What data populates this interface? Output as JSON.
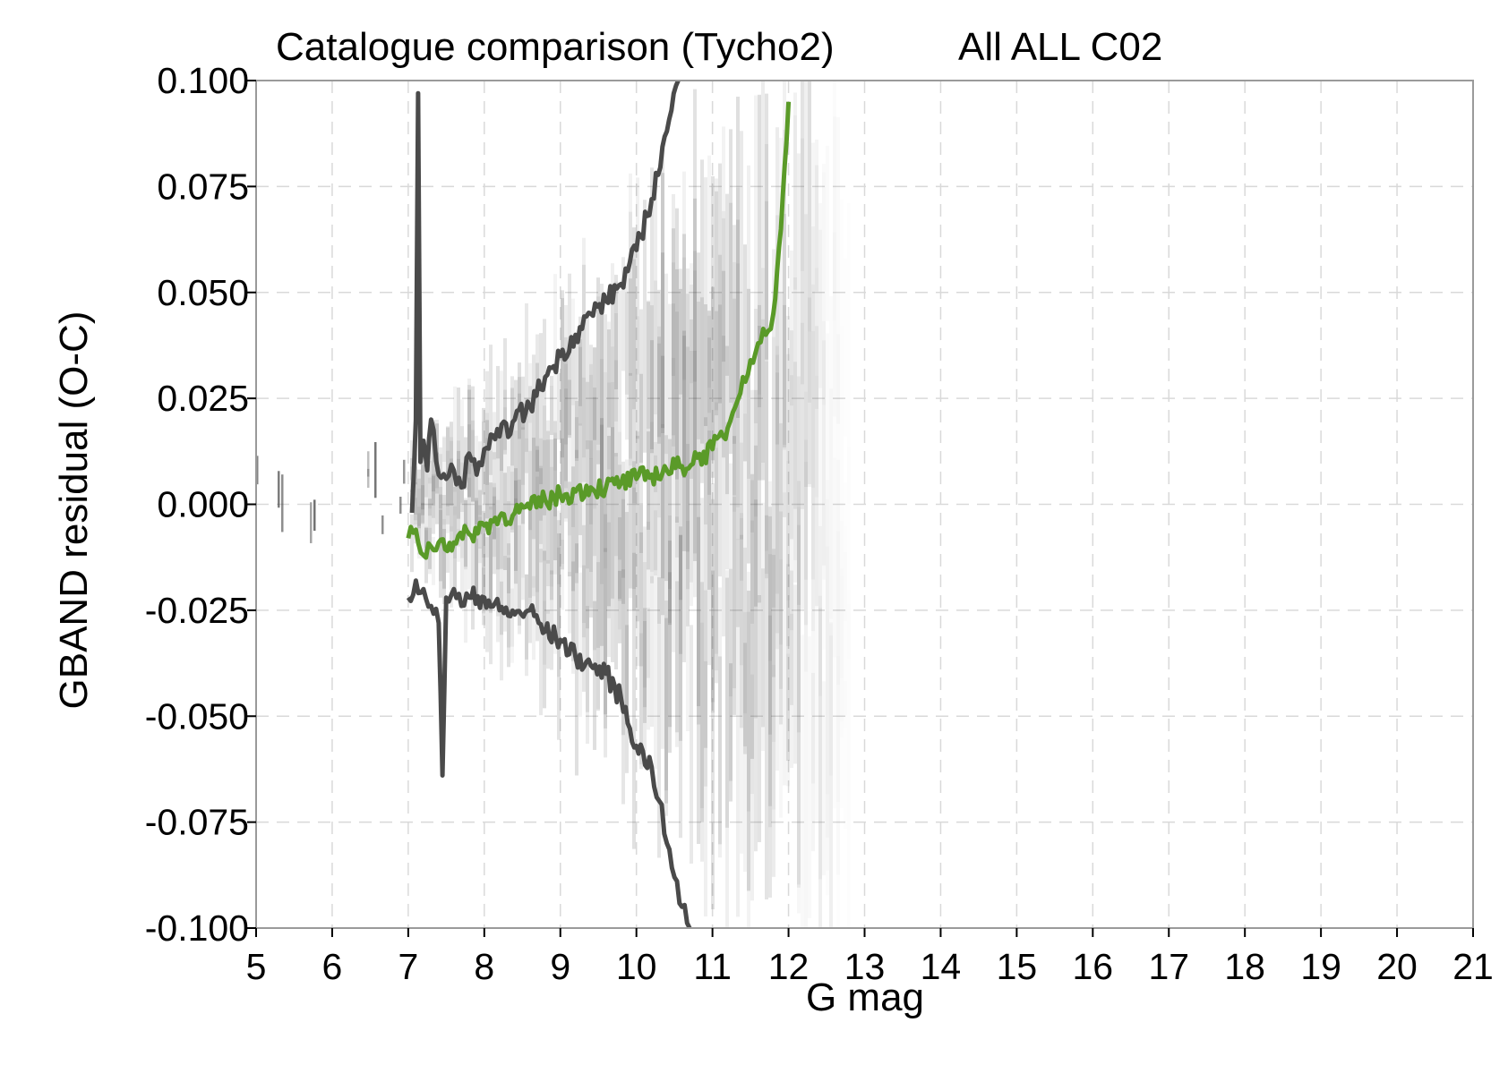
{
  "chart_data": {
    "type": "line",
    "title": "Catalogue comparison (Tycho2)",
    "subtitle": "All ALL C02",
    "xlabel": "G mag",
    "ylabel": "GBAND residual (O-C)",
    "xlim": [
      5,
      21
    ],
    "ylim": [
      -0.1,
      0.1
    ],
    "x_ticks": [
      "5",
      "6",
      "7",
      "8",
      "9",
      "10",
      "11",
      "12",
      "13",
      "14",
      "15",
      "16",
      "17",
      "18",
      "19",
      "20",
      "21"
    ],
    "y_ticks": [
      "-0.100",
      "-0.075",
      "-0.050",
      "-0.025",
      "0.000",
      "0.025",
      "0.050",
      "0.075",
      "0.100"
    ],
    "grid": true,
    "background": "grey-shaded 2D density of residuals, spread widening with G mag, fading out by G ≈ 12.8",
    "series": [
      {
        "color": "#4a4a4a",
        "x": [
          7.05,
          7.1,
          7.13,
          7.16,
          7.2,
          7.25,
          7.3,
          7.4,
          7.5,
          7.6,
          7.7,
          7.8,
          7.9,
          8.0,
          8.2,
          8.4,
          8.6,
          8.8,
          9.0,
          9.2,
          9.4,
          9.6,
          9.8,
          10.0,
          10.2,
          10.4,
          10.55
        ],
        "y": [
          -0.002,
          0.02,
          0.097,
          0.01,
          0.015,
          0.008,
          0.02,
          0.007,
          0.006,
          0.008,
          0.004,
          0.012,
          0.007,
          0.013,
          0.016,
          0.02,
          0.023,
          0.03,
          0.035,
          0.04,
          0.045,
          0.048,
          0.052,
          0.06,
          0.072,
          0.088,
          0.1
        ]
      },
      {
        "color": "#4a4a4a",
        "x": [
          7.0,
          7.1,
          7.2,
          7.3,
          7.4,
          7.45,
          7.5,
          7.6,
          7.7,
          7.8,
          8.0,
          8.2,
          8.4,
          8.6,
          8.8,
          9.0,
          9.2,
          9.4,
          9.6,
          9.8,
          10.0,
          10.2,
          10.3,
          10.4,
          10.5,
          10.6,
          10.7
        ],
        "y": [
          -0.022,
          -0.018,
          -0.02,
          -0.024,
          -0.028,
          -0.064,
          -0.022,
          -0.02,
          -0.024,
          -0.022,
          -0.022,
          -0.025,
          -0.026,
          -0.025,
          -0.03,
          -0.032,
          -0.036,
          -0.038,
          -0.04,
          -0.046,
          -0.057,
          -0.062,
          -0.07,
          -0.08,
          -0.088,
          -0.095,
          -0.1
        ]
      },
      {
        "color": "#5a9a28",
        "x": [
          7.0,
          7.1,
          7.2,
          7.3,
          7.4,
          7.6,
          7.8,
          8.0,
          8.2,
          8.4,
          8.6,
          8.8,
          9.0,
          9.2,
          9.4,
          9.6,
          9.8,
          10.0,
          10.2,
          10.4,
          10.6,
          10.8,
          11.0,
          11.2,
          11.3,
          11.4,
          11.5,
          11.6,
          11.7,
          11.8,
          11.85,
          11.9,
          11.95,
          12.0
        ],
        "y": [
          -0.008,
          -0.006,
          -0.012,
          -0.01,
          -0.009,
          -0.009,
          -0.007,
          -0.005,
          -0.003,
          -0.002,
          -0.001,
          0.001,
          0.002,
          0.003,
          0.004,
          0.004,
          0.005,
          0.006,
          0.007,
          0.008,
          0.009,
          0.011,
          0.013,
          0.018,
          0.023,
          0.03,
          0.034,
          0.038,
          0.04,
          0.045,
          0.055,
          0.065,
          0.08,
          0.095
        ]
      }
    ]
  }
}
